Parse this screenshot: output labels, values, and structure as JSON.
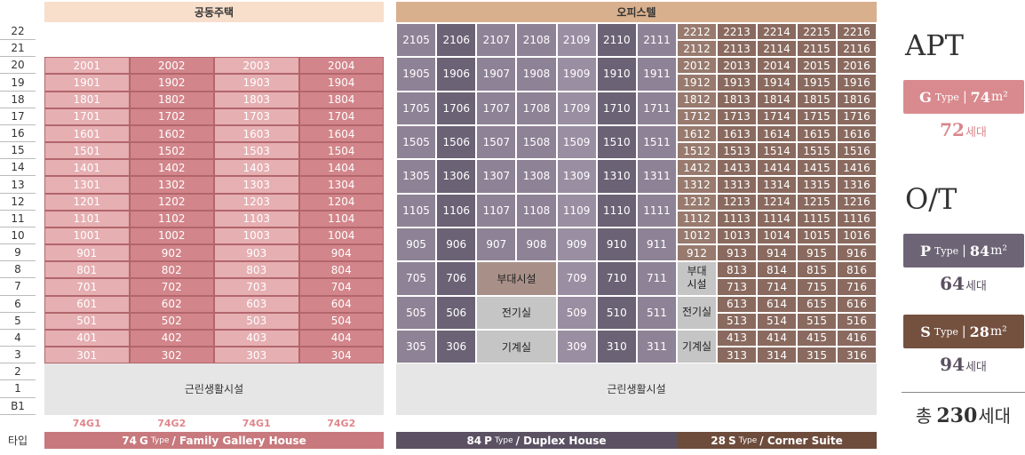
{
  "floors": [
    "22",
    "21",
    "20",
    "19",
    "18",
    "17",
    "16",
    "15",
    "14",
    "13",
    "12",
    "11",
    "10",
    "9",
    "8",
    "7",
    "6",
    "5",
    "4",
    "3",
    "2",
    "1",
    "B1"
  ],
  "type_row_label": "타입",
  "apt": {
    "header": "공동주택",
    "units": [
      [
        "2001",
        "2002",
        "2003",
        "2004"
      ],
      [
        "1901",
        "1902",
        "1903",
        "1904"
      ],
      [
        "1801",
        "1802",
        "1803",
        "1804"
      ],
      [
        "1701",
        "1702",
        "1703",
        "1704"
      ],
      [
        "1601",
        "1602",
        "1603",
        "1604"
      ],
      [
        "1501",
        "1502",
        "1503",
        "1504"
      ],
      [
        "1401",
        "1402",
        "1403",
        "1404"
      ],
      [
        "1301",
        "1302",
        "1303",
        "1304"
      ],
      [
        "1201",
        "1202",
        "1203",
        "1204"
      ],
      [
        "1101",
        "1102",
        "1103",
        "1104"
      ],
      [
        "1001",
        "1002",
        "1003",
        "1004"
      ],
      [
        "901",
        "902",
        "903",
        "904"
      ],
      [
        "801",
        "802",
        "803",
        "804"
      ],
      [
        "701",
        "702",
        "703",
        "704"
      ],
      [
        "601",
        "602",
        "603",
        "604"
      ],
      [
        "501",
        "502",
        "503",
        "504"
      ],
      [
        "401",
        "402",
        "403",
        "404"
      ],
      [
        "301",
        "302",
        "303",
        "304"
      ]
    ],
    "retail": "근린생활시설",
    "type_codes": [
      "74G1",
      "74G2",
      "74G1",
      "74G2"
    ],
    "type_bar": {
      "size": "74",
      "letter": "G",
      "type": "Type",
      "desc": "/ Family Gallery House"
    }
  },
  "ot": {
    "header": "오피스텔",
    "duplex_units": [
      [
        "2105",
        "2106",
        "2107",
        "2108",
        "2109",
        "2110",
        "2111"
      ],
      [
        "1905",
        "1906",
        "1907",
        "1908",
        "1909",
        "1910",
        "1911"
      ],
      [
        "1705",
        "1706",
        "1707",
        "1708",
        "1709",
        "1710",
        "1711"
      ],
      [
        "1505",
        "1506",
        "1507",
        "1508",
        "1509",
        "1510",
        "1511"
      ],
      [
        "1305",
        "1306",
        "1307",
        "1308",
        "1309",
        "1310",
        "1311"
      ],
      [
        "1105",
        "1106",
        "1107",
        "1108",
        "1109",
        "1110",
        "1111"
      ],
      [
        "905",
        "906",
        "907",
        "908",
        "909",
        "910",
        "911"
      ],
      [
        "705",
        "706",
        "709",
        "710",
        "711"
      ],
      [
        "505",
        "506",
        "509",
        "510",
        "511"
      ],
      [
        "305",
        "306",
        "309",
        "310",
        "311"
      ]
    ],
    "duplex_facilities": [
      "부대시설",
      "전기실",
      "기계실"
    ],
    "corner_units": [
      [
        "2212",
        "2213",
        "2214",
        "2215",
        "2216"
      ],
      [
        "2112",
        "2113",
        "2114",
        "2115",
        "2116"
      ],
      [
        "2012",
        "2013",
        "2014",
        "2015",
        "2016"
      ],
      [
        "1912",
        "1913",
        "1914",
        "1915",
        "1916"
      ],
      [
        "1812",
        "1813",
        "1814",
        "1815",
        "1816"
      ],
      [
        "1712",
        "1713",
        "1714",
        "1715",
        "1716"
      ],
      [
        "1612",
        "1613",
        "1614",
        "1615",
        "1616"
      ],
      [
        "1512",
        "1513",
        "1514",
        "1515",
        "1516"
      ],
      [
        "1412",
        "1413",
        "1414",
        "1415",
        "1416"
      ],
      [
        "1312",
        "1313",
        "1314",
        "1315",
        "1316"
      ],
      [
        "1212",
        "1213",
        "1214",
        "1215",
        "1216"
      ],
      [
        "1112",
        "1113",
        "1114",
        "1115",
        "1116"
      ],
      [
        "1012",
        "1013",
        "1014",
        "1015",
        "1016"
      ],
      [
        "912",
        "913",
        "914",
        "915",
        "916"
      ],
      [
        "813",
        "814",
        "815",
        "816"
      ],
      [
        "713",
        "714",
        "715",
        "716"
      ],
      [
        "613",
        "614",
        "615",
        "616"
      ],
      [
        "513",
        "514",
        "515",
        "516"
      ],
      [
        "413",
        "414",
        "415",
        "416"
      ],
      [
        "313",
        "314",
        "315",
        "316"
      ]
    ],
    "corner_facilities": [
      [
        "부대",
        "시설"
      ],
      [
        "전기실"
      ],
      [
        "기계실"
      ]
    ],
    "retail": "근린생활시설",
    "duplex_bar": {
      "size": "84",
      "letter": "P",
      "type": "Type",
      "desc": "/ Duplex House"
    },
    "corner_bar": {
      "size": "28",
      "letter": "S",
      "type": "Type",
      "desc": "/ Corner Suite"
    }
  },
  "summary": {
    "apt_title": "APT",
    "ot_title": "O/T",
    "types": [
      {
        "letter": "G",
        "type": "Type",
        "sep": "|",
        "size": "74",
        "unit": "m²",
        "count": "72",
        "count_unit": "세대"
      },
      {
        "letter": "P",
        "type": "Type",
        "sep": "|",
        "size": "84",
        "unit": "m²",
        "count": "64",
        "count_unit": "세대"
      },
      {
        "letter": "S",
        "type": "Type",
        "sep": "|",
        "size": "28",
        "unit": "m²",
        "count": "94",
        "count_unit": "세대"
      }
    ],
    "total_prefix": "총",
    "total": "230",
    "total_unit": "세대"
  }
}
